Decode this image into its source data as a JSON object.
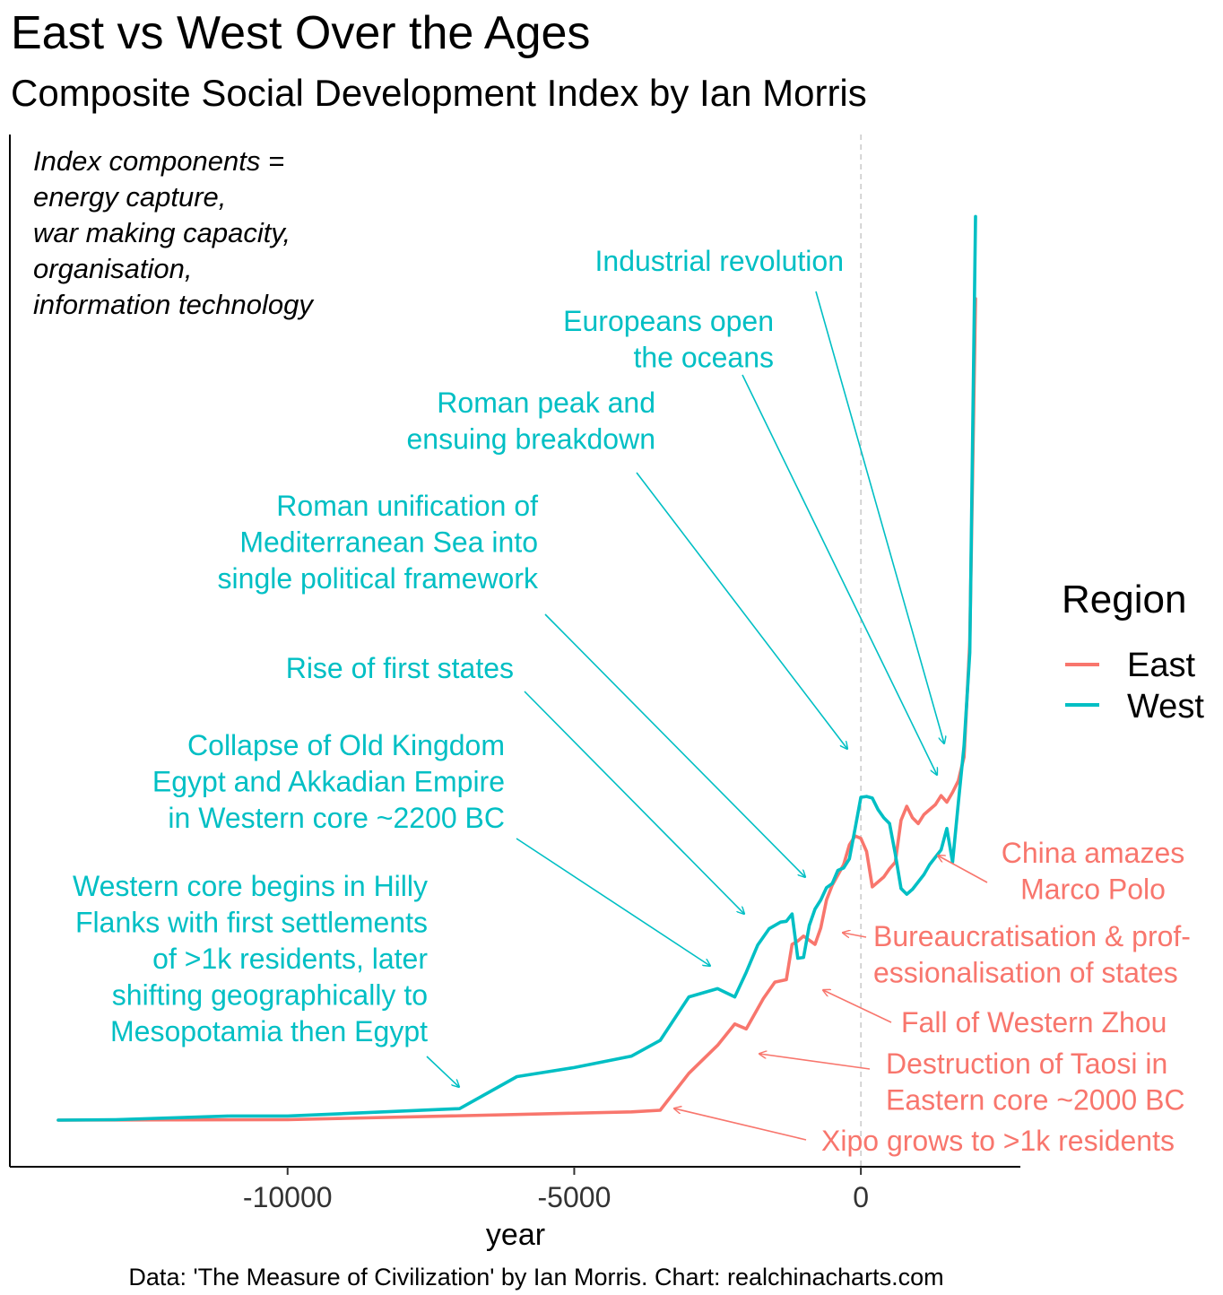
{
  "title": "East vs West Over the Ages",
  "subtitle": "Composite Social Development Index by Ian Morris",
  "caption": "Data: 'The Measure of Civilization' by Ian Morris. Chart: realchinacharts.com",
  "note_lines": [
    "Index components =",
    "energy capture,",
    "war making capacity,",
    "organisation,",
    "information technology"
  ],
  "colors": {
    "east": "#F8766D",
    "west": "#00BFC4",
    "axis": "#000000",
    "zero_line": "#bbbbbb"
  },
  "chart_data": {
    "type": "line",
    "xlabel": "year",
    "ylabel": "",
    "xlim": [
      -14000,
      2800
    ],
    "ylim": [
      0,
      1000
    ],
    "x_ticks": [
      -10000,
      -5000,
      0
    ],
    "x_tick_labels": [
      "-10000",
      "-5000",
      "0"
    ],
    "grid": false,
    "reference_line_x": 0,
    "legend": {
      "title": "Region",
      "position": "right",
      "entries": [
        "East",
        "West"
      ]
    },
    "series": [
      {
        "name": "East",
        "x": [
          -14000,
          -10000,
          -4000,
          -3500,
          -3000,
          -2500,
          -2200,
          -2000,
          -1700,
          -1500,
          -1300,
          -1200,
          -1100,
          -1000,
          -800,
          -700,
          -600,
          -500,
          -300,
          -200,
          -100,
          0,
          100,
          200,
          400,
          500,
          600,
          700,
          800,
          900,
          1000,
          1100,
          1200,
          1300,
          1400,
          1500,
          1600,
          1700,
          1800,
          1900,
          2000
        ],
        "y": [
          0.0,
          0.5,
          10.0,
          12.0,
          57.0,
          91.0,
          117.0,
          111.0,
          148.0,
          168.0,
          171.0,
          214.0,
          218.0,
          224.0,
          214.0,
          234.0,
          268.0,
          286.0,
          311.0,
          335.0,
          346.0,
          343.0,
          327.0,
          284.0,
          296.0,
          306.0,
          314.0,
          365.0,
          382.0,
          368.0,
          361.0,
          372.0,
          378.0,
          384.0,
          395.0,
          387.0,
          399.0,
          413.0,
          442.0,
          582.0,
          1000.0
        ]
      },
      {
        "name": "West",
        "x": [
          -14000,
          -13000,
          -11000,
          -10000,
          -7000,
          -6000,
          -5000,
          -4000,
          -3500,
          -3000,
          -2500,
          -2200,
          -2000,
          -1800,
          -1600,
          -1400,
          -1300,
          -1200,
          -1100,
          -1000,
          -900,
          -800,
          -700,
          -600,
          -500,
          -400,
          -300,
          -200,
          -100,
          0,
          100,
          200,
          300,
          400,
          500,
          600,
          700,
          800,
          900,
          1000,
          1100,
          1200,
          1300,
          1400,
          1500,
          1600,
          1700,
          1800,
          1900,
          2000
        ],
        "y": [
          0.0,
          0.5,
          5.0,
          5.0,
          14.0,
          53.0,
          64.0,
          78.0,
          97.0,
          150.0,
          160.0,
          150.0,
          180.0,
          213.0,
          233.0,
          241.0,
          242.0,
          251.0,
          197.0,
          198.0,
          237.0,
          257.0,
          268.0,
          283.0,
          288.0,
          304.0,
          307.0,
          318.0,
          355.0,
          393.0,
          394.0,
          392.0,
          378.0,
          368.0,
          361.0,
          324.0,
          282.0,
          275.0,
          281.0,
          290.0,
          299.0,
          311.0,
          320.0,
          329.0,
          355.0,
          314.0,
          386.0,
          456.0,
          569.0,
          1100.0
        ]
      }
    ],
    "annotations": [
      {
        "id": "western-core",
        "color_key": "west",
        "lines": [
          "Western core begins in Hilly",
          "Flanks with first settlements",
          "of >1k residents, later",
          "shifting geographically to",
          "Mesopotamia then Egypt"
        ]
      },
      {
        "id": "collapse-old-kingdom",
        "color_key": "west",
        "lines": [
          "Collapse of Old Kingdom",
          "Egypt and Akkadian Empire",
          "in Western core ~2200 BC"
        ]
      },
      {
        "id": "rise-first-states",
        "color_key": "west",
        "lines": [
          "Rise of first states"
        ]
      },
      {
        "id": "roman-unification",
        "color_key": "west",
        "lines": [
          "Roman unification of",
          "Mediterranean Sea into",
          "single political framework"
        ]
      },
      {
        "id": "roman-peak",
        "color_key": "west",
        "lines": [
          "Roman peak and",
          "ensuing breakdown"
        ]
      },
      {
        "id": "europeans-oceans",
        "color_key": "west",
        "lines": [
          "Europeans open",
          "the oceans"
        ]
      },
      {
        "id": "industrial-revolution",
        "color_key": "west",
        "lines": [
          "Industrial revolution"
        ]
      },
      {
        "id": "china-marco-polo",
        "color_key": "east",
        "lines": [
          "China amazes",
          "Marco Polo"
        ]
      },
      {
        "id": "bureaucratisation",
        "color_key": "east",
        "lines": [
          "Bureaucratisation & prof-",
          "essionalisation of states"
        ]
      },
      {
        "id": "fall-western-zhou",
        "color_key": "east",
        "lines": [
          "Fall of Western Zhou"
        ]
      },
      {
        "id": "destruction-taosi",
        "color_key": "east",
        "lines": [
          "Destruction of Taosi in",
          "Eastern core ~2000 BC"
        ]
      },
      {
        "id": "xipo",
        "color_key": "east",
        "lines": [
          "Xipo grows to >1k residents"
        ]
      }
    ]
  }
}
